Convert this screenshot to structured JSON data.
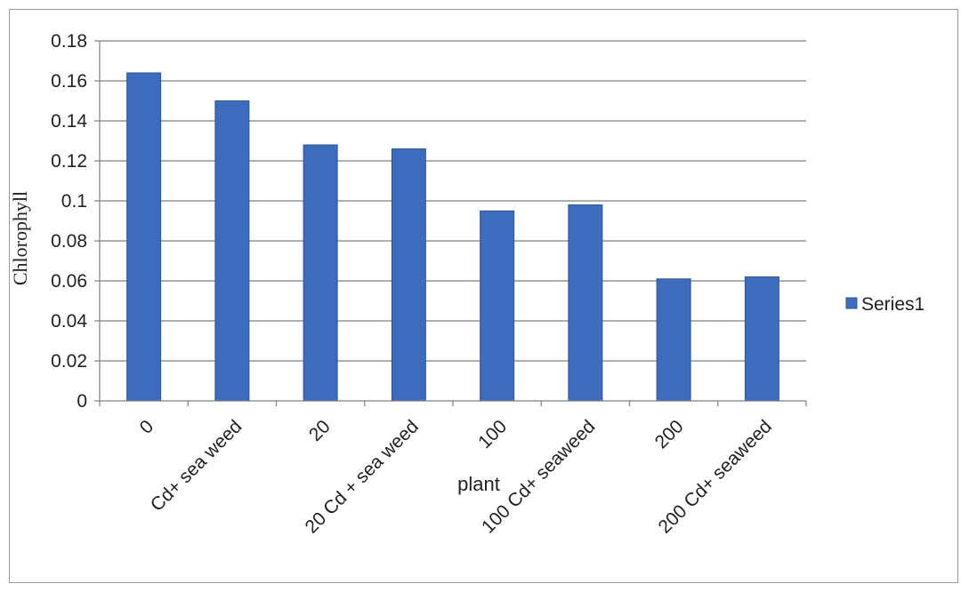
{
  "chart_data": {
    "type": "bar",
    "categories": [
      "0",
      "Cd+ sea weed",
      "20",
      "20 Cd + sea weed",
      "100",
      "100 Cd+ seaweed",
      "200",
      "200 Cd+ seaweed"
    ],
    "series": [
      {
        "name": "Series1",
        "values": [
          0.164,
          0.15,
          0.128,
          0.126,
          0.095,
          0.098,
          0.061,
          0.062
        ]
      }
    ],
    "xlabel": "plant",
    "ylabel": "Chlorophyll",
    "ylim": [
      0,
      0.18
    ],
    "yticks": [
      "0",
      "0.02",
      "0.04",
      "0.06",
      "0.08",
      "0.1",
      "0.12",
      "0.14",
      "0.16",
      "0.18"
    ],
    "grid": true,
    "legend_position": "right",
    "colors": {
      "bar": "#3d6bbd",
      "bar_edge": "#2f5599",
      "grid": "#7f7f7f",
      "axis": "#7f7f7f"
    }
  }
}
